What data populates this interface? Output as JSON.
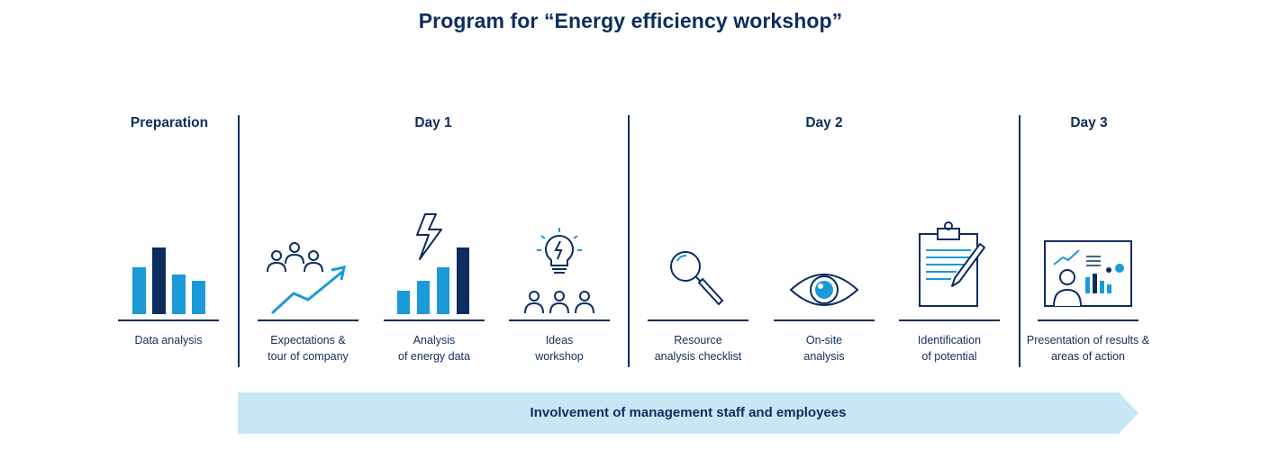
{
  "title": "Program for “Energy efficiency workshop”",
  "phases": [
    {
      "label": "Preparation"
    },
    {
      "label": "Day 1"
    },
    {
      "label": "Day 2"
    },
    {
      "label": "Day 3"
    }
  ],
  "items": [
    {
      "label": "Data analysis",
      "icon": "bar-chart-icon"
    },
    {
      "label": "Expectations &\ntour of company",
      "icon": "team-growth-icon"
    },
    {
      "label": "Analysis\nof energy data",
      "icon": "energy-chart-icon"
    },
    {
      "label": "Ideas\nworkshop",
      "icon": "lightbulb-team-icon"
    },
    {
      "label": "Resource\nanalysis checklist",
      "icon": "magnifier-icon"
    },
    {
      "label": "On-site\nanalysis",
      "icon": "eye-icon"
    },
    {
      "label": "Identification\nof potential",
      "icon": "clipboard-icon"
    },
    {
      "label": "Presentation of results &\nareas of action",
      "icon": "presentation-icon"
    }
  ],
  "banner": {
    "label": "Involvement of management staff and employees"
  },
  "colors": {
    "navy": "#0c2d5e",
    "blue": "#1a9ad6",
    "light": "#c9e6f7"
  }
}
